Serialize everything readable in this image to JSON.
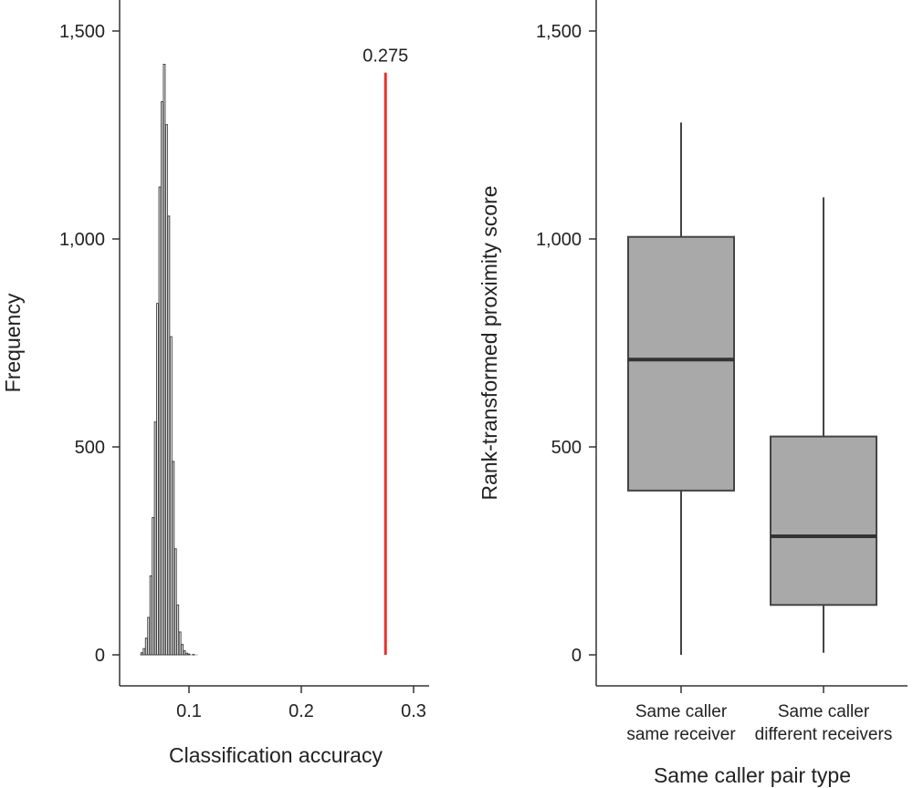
{
  "chart_data": [
    {
      "type": "histogram",
      "xlabel": "Classification accuracy",
      "ylabel": "Frequency",
      "xlim": [
        0.04,
        0.31
      ],
      "ylim": [
        0,
        1600
      ],
      "x_ticks": [
        {
          "value": 0.1,
          "label": "0.1"
        },
        {
          "value": 0.2,
          "label": "0.2"
        },
        {
          "value": 0.3,
          "label": "0.3"
        }
      ],
      "y_ticks": [
        {
          "value": 0,
          "label": "0"
        },
        {
          "value": 500,
          "label": "500"
        },
        {
          "value": 1000,
          "label": "1,000"
        },
        {
          "value": 1500,
          "label": "1,500"
        }
      ],
      "bars": [
        {
          "x": 0.058,
          "y": 5
        },
        {
          "x": 0.06,
          "y": 15
        },
        {
          "x": 0.062,
          "y": 40
        },
        {
          "x": 0.064,
          "y": 90
        },
        {
          "x": 0.066,
          "y": 190
        },
        {
          "x": 0.068,
          "y": 330
        },
        {
          "x": 0.07,
          "y": 560
        },
        {
          "x": 0.072,
          "y": 845
        },
        {
          "x": 0.074,
          "y": 1125
        },
        {
          "x": 0.076,
          "y": 1330
        },
        {
          "x": 0.078,
          "y": 1420
        },
        {
          "x": 0.08,
          "y": 1275
        },
        {
          "x": 0.082,
          "y": 1055
        },
        {
          "x": 0.084,
          "y": 765
        },
        {
          "x": 0.086,
          "y": 465
        },
        {
          "x": 0.088,
          "y": 255
        },
        {
          "x": 0.09,
          "y": 120
        },
        {
          "x": 0.092,
          "y": 55
        },
        {
          "x": 0.094,
          "y": 25
        },
        {
          "x": 0.096,
          "y": 10
        },
        {
          "x": 0.098,
          "y": 4
        },
        {
          "x": 0.1,
          "y": 2
        },
        {
          "x": 0.104,
          "y": 1
        }
      ],
      "reference_line": {
        "x": 0.275,
        "top": 1400,
        "label": "0.275",
        "color": "#e8312f"
      }
    },
    {
      "type": "box",
      "xlabel": "Same caller pair type",
      "ylabel": "Rank-transformed proximity score",
      "ylim": [
        0,
        1600
      ],
      "y_ticks": [
        {
          "value": 0,
          "label": "0"
        },
        {
          "value": 500,
          "label": "500"
        },
        {
          "value": 1000,
          "label": "1,000"
        },
        {
          "value": 1500,
          "label": "1,500"
        }
      ],
      "categories": [
        {
          "line1": "Same caller",
          "line2": "same receiver"
        },
        {
          "line1": "Same caller",
          "line2": "different receivers"
        }
      ],
      "boxes": [
        {
          "min": 0,
          "q1": 395,
          "median": 710,
          "q3": 1005,
          "max": 1280
        },
        {
          "min": 5,
          "q1": 120,
          "median": 285,
          "q3": 525,
          "max": 1100
        }
      ],
      "box_fill": "#a9a9a9"
    }
  ]
}
